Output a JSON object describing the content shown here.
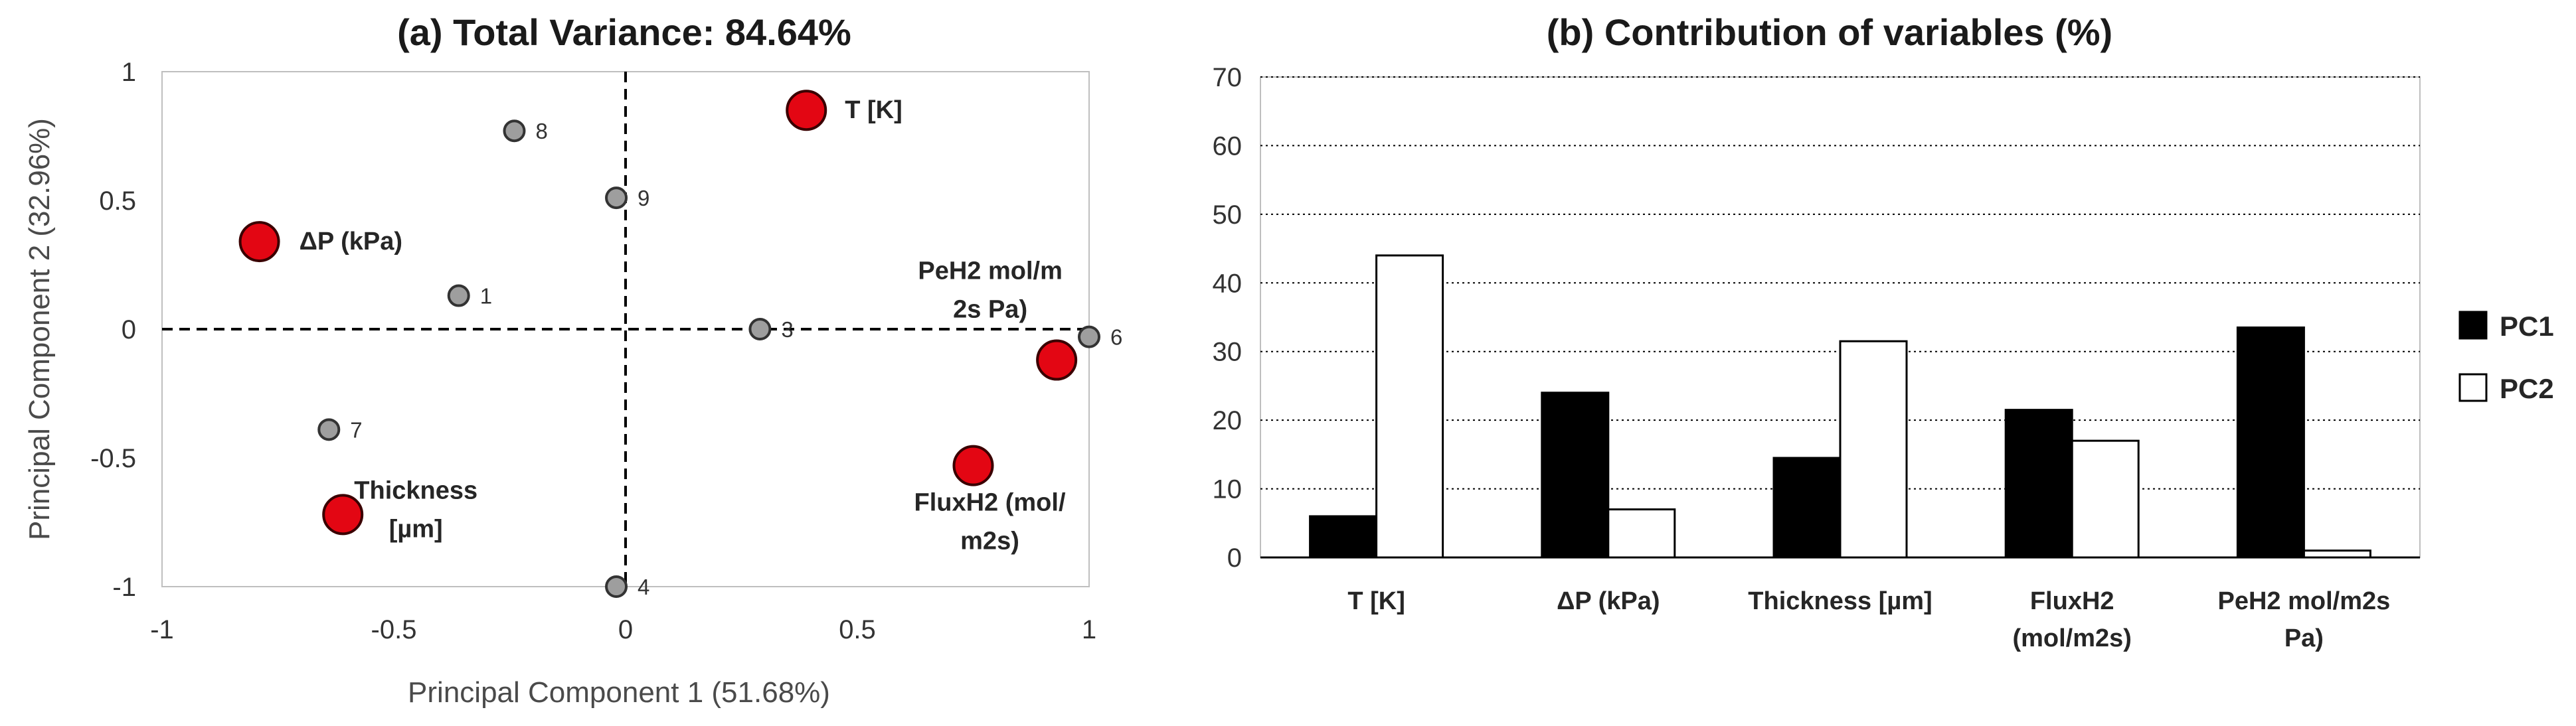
{
  "chart_data": [
    {
      "type": "scatter",
      "title": "(a) Total Variance: 84.64%",
      "xlabel": "Principal Component 1 (51.68%)",
      "ylabel": "Principal Component 2 (32.96%)",
      "xlim": [
        -1,
        1
      ],
      "ylim": [
        -1,
        1
      ],
      "xticks": [
        "-1",
        "-0.5",
        "0",
        "0.5",
        "1"
      ],
      "yticks": [
        "1",
        "0.5",
        "0",
        "-0.5",
        "-1"
      ],
      "origin_lines": "dashed",
      "variables": [
        {
          "label": "T [K]",
          "lines": [
            "T [K]"
          ],
          "x": 0.39,
          "y": 0.85
        },
        {
          "label": "ΔP (kPa)",
          "lines": [
            "ΔP (kPa)"
          ],
          "x": -0.79,
          "y": 0.34
        },
        {
          "label": "PeH2 mol/m2s Pa)",
          "lines": [
            "PeH2 mol/m",
            "2s Pa)"
          ],
          "x": 0.93,
          "y": -0.12
        },
        {
          "label": "FluxH2 (mol/m2s)",
          "lines": [
            "FluxH2 (mol/",
            "m2s)"
          ],
          "x": 0.75,
          "y": -0.53
        },
        {
          "label": "Thickness [µm]",
          "lines": [
            "Thickness",
            "[µm]"
          ],
          "x": -0.61,
          "y": -0.72
        }
      ],
      "observations": [
        {
          "label": "8",
          "x": -0.24,
          "y": 0.77
        },
        {
          "label": "9",
          "x": -0.02,
          "y": 0.51
        },
        {
          "label": "1",
          "x": -0.36,
          "y": 0.13
        },
        {
          "label": "3",
          "x": 0.29,
          "y": 0.0
        },
        {
          "label": "6",
          "x": 1.0,
          "y": -0.03
        },
        {
          "label": "7",
          "x": -0.64,
          "y": -0.39
        },
        {
          "label": "4",
          "x": -0.02,
          "y": -1.0
        }
      ],
      "colors": {
        "variables": "#e30613",
        "observations": "#9e9e9e"
      }
    },
    {
      "type": "bar",
      "title": "(b) Contribution of variables (%)",
      "categories": [
        {
          "label": "T [K]",
          "lines": [
            "T [K]"
          ]
        },
        {
          "label": "ΔP (kPa)",
          "lines": [
            "ΔP (kPa)"
          ]
        },
        {
          "label": "Thickness [µm]",
          "lines": [
            "Thickness [µm]"
          ]
        },
        {
          "label": "FluxH2 (mol/m2s)",
          "lines": [
            "FluxH2",
            "(mol/m2s)"
          ]
        },
        {
          "label": "PeH2 mol/m2s Pa)",
          "lines": [
            "PeH2 mol/m2s",
            "Pa)"
          ]
        }
      ],
      "series": [
        {
          "name": "PC1",
          "color": "#000000",
          "values": [
            6,
            24,
            14.5,
            21.5,
            33.5
          ]
        },
        {
          "name": "PC2",
          "color": "#ffffff",
          "values": [
            44,
            7,
            31.5,
            17,
            1
          ]
        }
      ],
      "ylim": [
        0,
        70
      ],
      "yticks": [
        "0",
        "10",
        "20",
        "30",
        "40",
        "50",
        "60",
        "70"
      ],
      "grid": "dotted horizontal",
      "legend": "right"
    }
  ]
}
